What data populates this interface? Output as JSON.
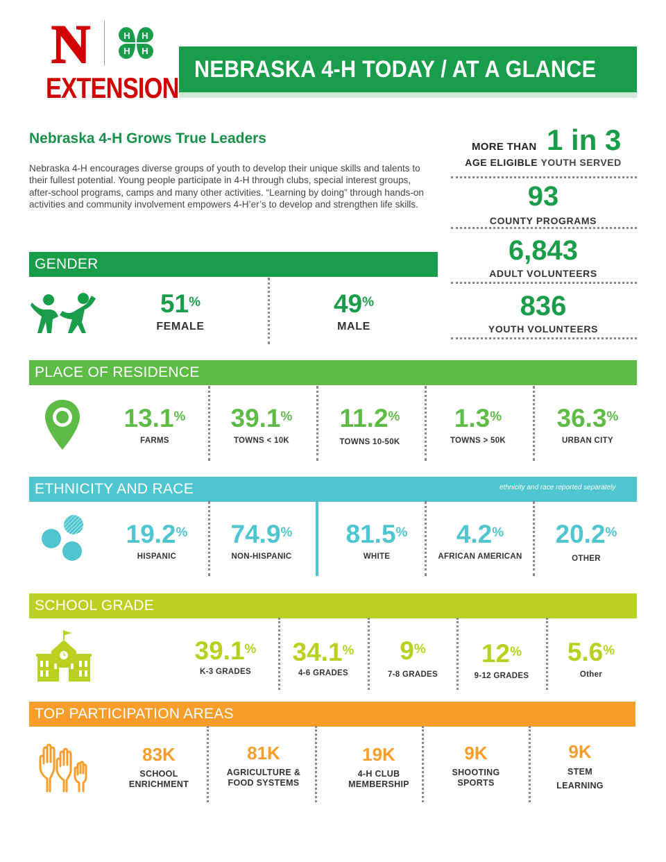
{
  "colors": {
    "green": "#1a9d4a",
    "light_green": "#5dbb46",
    "teal": "#4ec5cf",
    "lime": "#b8d01e",
    "orange": "#f89c2a",
    "red": "#d00000"
  },
  "logo": {
    "letter": "N",
    "extension": "EXTENSION",
    "clover_letters": "H"
  },
  "title": "NEBRASKA 4-H TODAY / AT A GLANCE",
  "headline": "Nebraska 4-H Grows True Leaders",
  "intro": "Nebraska 4-H encourages diverse groups of youth to develop their unique skills and talents to their fullest potential. Young people participate in 4-H through clubs, special interest groups, after-school programs, camps and many other activities. “Learning by doing” through hands-on activities and community involvement empowers 4-H’er’s to develop and strengthen life skills.",
  "stats": {
    "youth_prefix": "MORE THAN",
    "youth_value": "1 in 3",
    "youth_label_bold": "AGE ELIGIBLE",
    "youth_label_rest": "YOUTH SERVED",
    "county_value": "93",
    "county_label": "COUNTY PROGRAMS",
    "adult_value": "6,843",
    "adult_label": "ADULT VOLUNTEERS",
    "youthvol_value": "836",
    "youthvol_label": "YOUTH VOLUNTEERS"
  },
  "gender": {
    "heading": "GENDER",
    "percent_sign": "%",
    "items": [
      {
        "value": "51",
        "label": "FEMALE"
      },
      {
        "value": "49",
        "label": "MALE"
      }
    ]
  },
  "residence": {
    "heading": "PLACE OF RESIDENCE",
    "percent_sign": "%",
    "items": [
      {
        "value": "13.1",
        "label": "FARMS"
      },
      {
        "value": "39.1",
        "label": "TOWNS < 10K"
      },
      {
        "value": "11.2",
        "label": "TOWNS 10-50K"
      },
      {
        "value": "1.3",
        "label": "TOWNS > 50K"
      },
      {
        "value": "36.3",
        "label": "URBAN CITY"
      }
    ]
  },
  "ethnicity": {
    "heading": "ETHNICITY AND RACE",
    "note": "ethnicity and race reported separately",
    "percent_sign": "%",
    "items": [
      {
        "value": "19.2",
        "label": "HISPANIC"
      },
      {
        "value": "74.9",
        "label": "NON-HISPANIC"
      },
      {
        "value": "81.5",
        "label": "WHITE"
      },
      {
        "value": "4.2",
        "label": "AFRICAN AMERICAN"
      },
      {
        "value": "20.2",
        "label": "OTHER"
      }
    ]
  },
  "grade": {
    "heading": "SCHOOL GRADE",
    "percent_sign": "%",
    "items": [
      {
        "value": "39.1",
        "label": "K-3 GRADES"
      },
      {
        "value": "34.1",
        "label": "4-6 GRADES"
      },
      {
        "value": "9",
        "label": "7-8 GRADES"
      },
      {
        "value": "12",
        "label": "9-12 GRADES"
      },
      {
        "value": "5.6",
        "label": "Other"
      }
    ]
  },
  "participation": {
    "heading": "TOP PARTICIPATION AREAS",
    "items": [
      {
        "value": "83K",
        "line1": "SCHOOL",
        "line2": "ENRICHMENT"
      },
      {
        "value": "81K",
        "line1": "AGRICULTURE &",
        "line2": "FOOD SYSTEMS"
      },
      {
        "value": "19K",
        "line1": "4-H CLUB",
        "line2": "MEMBERSHIP"
      },
      {
        "value": "9K",
        "line1": "SHOOTING",
        "line2": "SPORTS"
      },
      {
        "value": "9K",
        "line1": "STEM",
        "line2": "LEARNING"
      }
    ]
  }
}
